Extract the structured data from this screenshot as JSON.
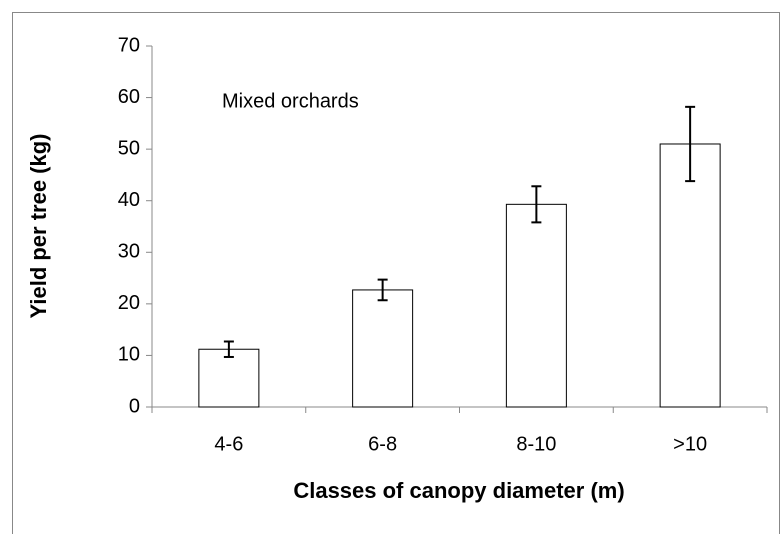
{
  "chart_data": {
    "type": "bar",
    "xlabel": "Classes of canopy diameter (m)",
    "ylabel": "Yield per tree (kg)",
    "annotation": "Mixed orchards",
    "categories": [
      "4-6",
      "6-8",
      "8-10",
      ">10"
    ],
    "values": [
      11.2,
      22.7,
      39.3,
      51
    ],
    "errors": [
      1.5,
      2,
      3.5,
      7.2
    ],
    "color": "#ffffff",
    "ylim": [
      0,
      70
    ],
    "yticks": [
      0,
      10,
      20,
      30,
      40,
      50,
      60,
      70
    ],
    "grid": false
  }
}
